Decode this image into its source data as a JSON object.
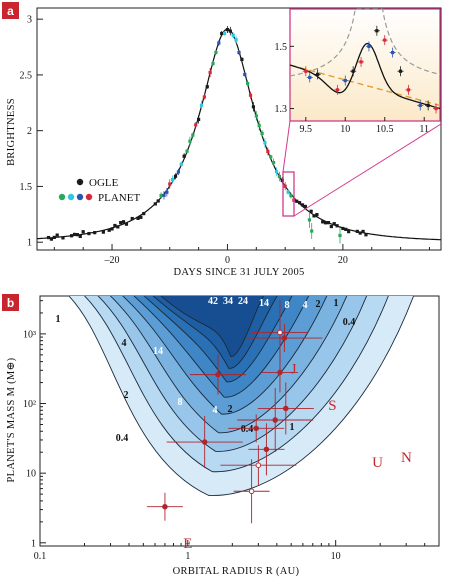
{
  "panel_a": {
    "label": "a",
    "xlabel": "DAYS SINCE 31 JULY 2005",
    "ylabel": "BRIGHTNESS",
    "xticks": [
      "–20",
      "0",
      "20"
    ],
    "yticks": [
      "1",
      "1.5",
      "2",
      "2.5",
      "3"
    ],
    "legend": [
      {
        "name": "OGLE",
        "colors": [
          "#1a1a1a"
        ]
      },
      {
        "name": "PLANET",
        "colors": [
          "#2ca65a",
          "#2ec7e0",
          "#2a55b0",
          "#d8283c"
        ]
      }
    ],
    "inset": {
      "xticks": [
        "9.5",
        "10",
        "10.5",
        "11"
      ],
      "yticks": [
        "1.3",
        "1.5"
      ]
    }
  },
  "panel_b": {
    "label": "b",
    "xlabel": "ORBITAL RADIUS R (AU)",
    "ylabel": "PLANET'S MASS M (M⊕)",
    "xticks": [
      "0.1",
      "1",
      "10"
    ],
    "yticks": [
      "1",
      "10",
      "10²",
      "10³"
    ],
    "contour_labels": [
      "42",
      "34",
      "24",
      "14",
      "8",
      "4",
      "2",
      "1",
      "0.4",
      "1",
      "4",
      "14",
      "2",
      "8",
      "4",
      "2",
      "0.4",
      "1",
      "0.4"
    ],
    "planet_labels": [
      "J",
      "S",
      "U",
      "N",
      "E"
    ]
  },
  "chart_data": [
    {
      "type": "scatter",
      "title": "",
      "xlabel": "DAYS SINCE 31 JULY 2005",
      "ylabel": "BRIGHTNESS",
      "xlim": [
        -33,
        37
      ],
      "ylim": [
        0.93,
        3.1
      ],
      "series": [
        {
          "name": "OGLE",
          "color": "#1a1a1a",
          "x": [
            -31,
            -29,
            -27,
            -25,
            -23,
            -21,
            -19,
            -17,
            -15,
            -13,
            -11,
            -9,
            -7,
            -5,
            -3,
            -1.5,
            14,
            16,
            18,
            20,
            22,
            24
          ],
          "y": [
            1.02,
            1.03,
            1.04,
            1.05,
            1.06,
            1.08,
            1.1,
            1.13,
            1.17,
            1.22,
            1.3,
            1.45,
            1.75,
            2.15,
            2.6,
            2.85,
            1.12,
            1.1,
            1.08,
            1.07,
            1.06,
            1.05
          ]
        },
        {
          "name": "PLANET",
          "color": "#2a55b0",
          "x": [
            -2,
            -1,
            -0.5,
            0,
            0.5,
            1,
            1.5,
            2,
            3,
            4,
            5,
            6,
            7,
            8,
            9
          ],
          "y": [
            2.75,
            2.88,
            2.92,
            2.95,
            2.9,
            2.82,
            2.7,
            2.55,
            2.3,
            2.1,
            1.9,
            1.75,
            1.6,
            1.5,
            1.42
          ]
        }
      ],
      "inset": {
        "xlim": [
          9.3,
          11.2
        ],
        "ylim": [
          1.26,
          1.62
        ],
        "points": [
          [
            9.5,
            1.42
          ],
          [
            9.55,
            1.4
          ],
          [
            9.65,
            1.41
          ],
          [
            9.9,
            1.36
          ],
          [
            10.0,
            1.39
          ],
          [
            10.1,
            1.42
          ],
          [
            10.2,
            1.45
          ],
          [
            10.3,
            1.5
          ],
          [
            10.4,
            1.55
          ],
          [
            10.5,
            1.52
          ],
          [
            10.6,
            1.48
          ],
          [
            10.7,
            1.42
          ],
          [
            10.8,
            1.36
          ],
          [
            10.95,
            1.31
          ],
          [
            11.05,
            1.31
          ],
          [
            11.15,
            1.3
          ]
        ],
        "curves": [
          "planetary model (solid)",
          "single-lens model (dashed grey)",
          "baseline (dashed orange)"
        ]
      }
    },
    {
      "type": "heatmap",
      "title": "",
      "xlabel": "ORBITAL RADIUS R (AU)",
      "ylabel": "PLANET'S MASS M (M⊕)",
      "xscale": "log",
      "yscale": "log",
      "xlim": [
        0.1,
        50
      ],
      "ylim": [
        0.9,
        3500
      ],
      "contour_levels": [
        0.4,
        1,
        2,
        4,
        8,
        14,
        24,
        34,
        42
      ],
      "planet_candidates": [
        {
          "r": 0.7,
          "m": 3.3
        },
        {
          "r": 1.6,
          "m": 260
        },
        {
          "r": 1.3,
          "m": 28
        },
        {
          "r": 2.7,
          "m": 5.5
        },
        {
          "r": 2.9,
          "m": 44
        },
        {
          "r": 3.0,
          "m": 13
        },
        {
          "r": 3.4,
          "m": 22
        },
        {
          "r": 4.2,
          "m": 1050
        },
        {
          "r": 4.5,
          "m": 870
        },
        {
          "r": 4.2,
          "m": 280
        },
        {
          "r": 4.6,
          "m": 85
        },
        {
          "r": 3.9,
          "m": 58
        }
      ],
      "solar_system": [
        {
          "name": "J",
          "r": 5.2,
          "m": 318
        },
        {
          "name": "S",
          "r": 9.5,
          "m": 95
        },
        {
          "name": "U",
          "r": 19.2,
          "m": 14.5
        },
        {
          "name": "N",
          "r": 30.1,
          "m": 17
        },
        {
          "name": "E",
          "r": 1.0,
          "m": 1.0
        }
      ]
    }
  ]
}
